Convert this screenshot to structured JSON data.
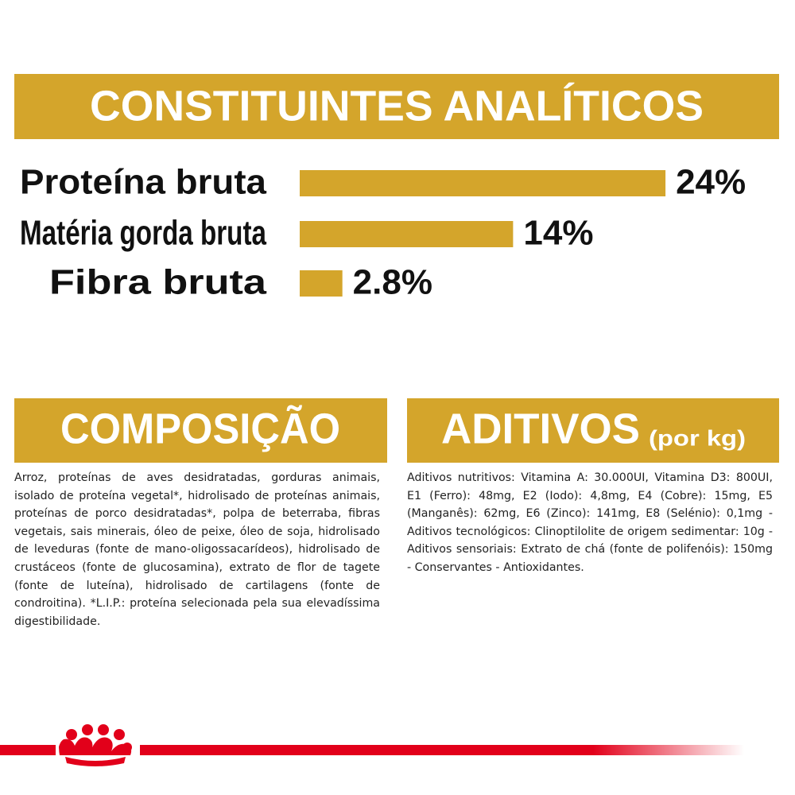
{
  "chart_data": {
    "type": "bar",
    "title": "CONSTITUINTES ANALÍTICOS",
    "categories": [
      "Proteína bruta",
      "Matéria gorda bruta",
      "Fibra bruta"
    ],
    "values": [
      24,
      14,
      2.8
    ],
    "value_labels": [
      "24%",
      "14%",
      "2.8%"
    ],
    "color": "#d4a52b"
  },
  "composition": {
    "title": "COMPOSIÇÃO",
    "text": "Arroz, proteínas de aves desidratadas, gorduras animais, isolado de proteína vegetal*, hidrolisado de proteínas animais, proteínas de porco desidratadas*, polpa de beterraba, fibras vegetais, sais minerais, óleo de peixe, óleo de soja, hidrolisado de leveduras (fonte de mano-oligossacarídeos), hidrolisado de crustáceos (fonte de glucosamina), extrato de flor de tagete (fonte de luteína), hidrolisado de cartilagens (fonte de condroitina). *L.I.P.: proteína selecionada pela sua elevadíssima digestibilidade."
  },
  "additives": {
    "title": "ADITIVOS",
    "unit": "(por kg)",
    "text": "Aditivos nutritivos: Vitamina A: 30.000UI, Vitamina D3: 800UI, E1 (Ferro): 48mg, E2 (Iodo): 4,8mg, E4 (Cobre): 15mg, E5 (Manganês): 62mg, E6 (Zinco): 141mg, E8 (Selénio): 0,1mg - Aditivos tecnológicos: Clinoptilolite de origem sedimentar: 10g - Aditivos sensoriais: Extrato de chá (fonte de polifenóis): 150mg - Conservantes - Antioxidantes."
  }
}
